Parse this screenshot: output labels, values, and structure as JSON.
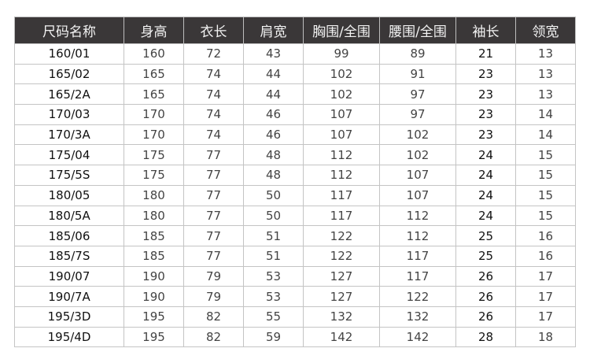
{
  "table": {
    "headers": [
      "尺码名称",
      "身高",
      "衣长",
      "肩宽",
      "胸围/全围",
      "腰围/全围",
      "袖长",
      "领宽"
    ],
    "rows": [
      [
        "160/01",
        "160",
        "72",
        "43",
        "99",
        "89",
        "21",
        "13"
      ],
      [
        "165/02",
        "165",
        "74",
        "44",
        "102",
        "91",
        "23",
        "13"
      ],
      [
        "165/2A",
        "165",
        "74",
        "44",
        "102",
        "97",
        "23",
        "13"
      ],
      [
        "170/03",
        "170",
        "74",
        "46",
        "107",
        "97",
        "23",
        "14"
      ],
      [
        "170/3A",
        "170",
        "74",
        "46",
        "107",
        "102",
        "23",
        "14"
      ],
      [
        "175/04",
        "175",
        "77",
        "48",
        "112",
        "102",
        "24",
        "15"
      ],
      [
        "175/5S",
        "175",
        "77",
        "48",
        "112",
        "107",
        "24",
        "15"
      ],
      [
        "180/05",
        "180",
        "77",
        "50",
        "117",
        "107",
        "24",
        "15"
      ],
      [
        "180/5A",
        "180",
        "77",
        "50",
        "117",
        "112",
        "24",
        "15"
      ],
      [
        "185/06",
        "185",
        "77",
        "51",
        "122",
        "112",
        "25",
        "16"
      ],
      [
        "185/7S",
        "185",
        "77",
        "51",
        "122",
        "117",
        "25",
        "16"
      ],
      [
        "190/07",
        "190",
        "79",
        "53",
        "127",
        "117",
        "26",
        "17"
      ],
      [
        "190/7A",
        "190",
        "79",
        "53",
        "127",
        "122",
        "26",
        "17"
      ],
      [
        "195/3D",
        "195",
        "82",
        "55",
        "132",
        "132",
        "26",
        "17"
      ],
      [
        "195/4D",
        "195",
        "82",
        "59",
        "142",
        "142",
        "28",
        "18"
      ]
    ],
    "colors": {
      "header_bg": "#3a3738",
      "header_text": "#f2f2f2",
      "border": "#c4c4c4"
    }
  }
}
